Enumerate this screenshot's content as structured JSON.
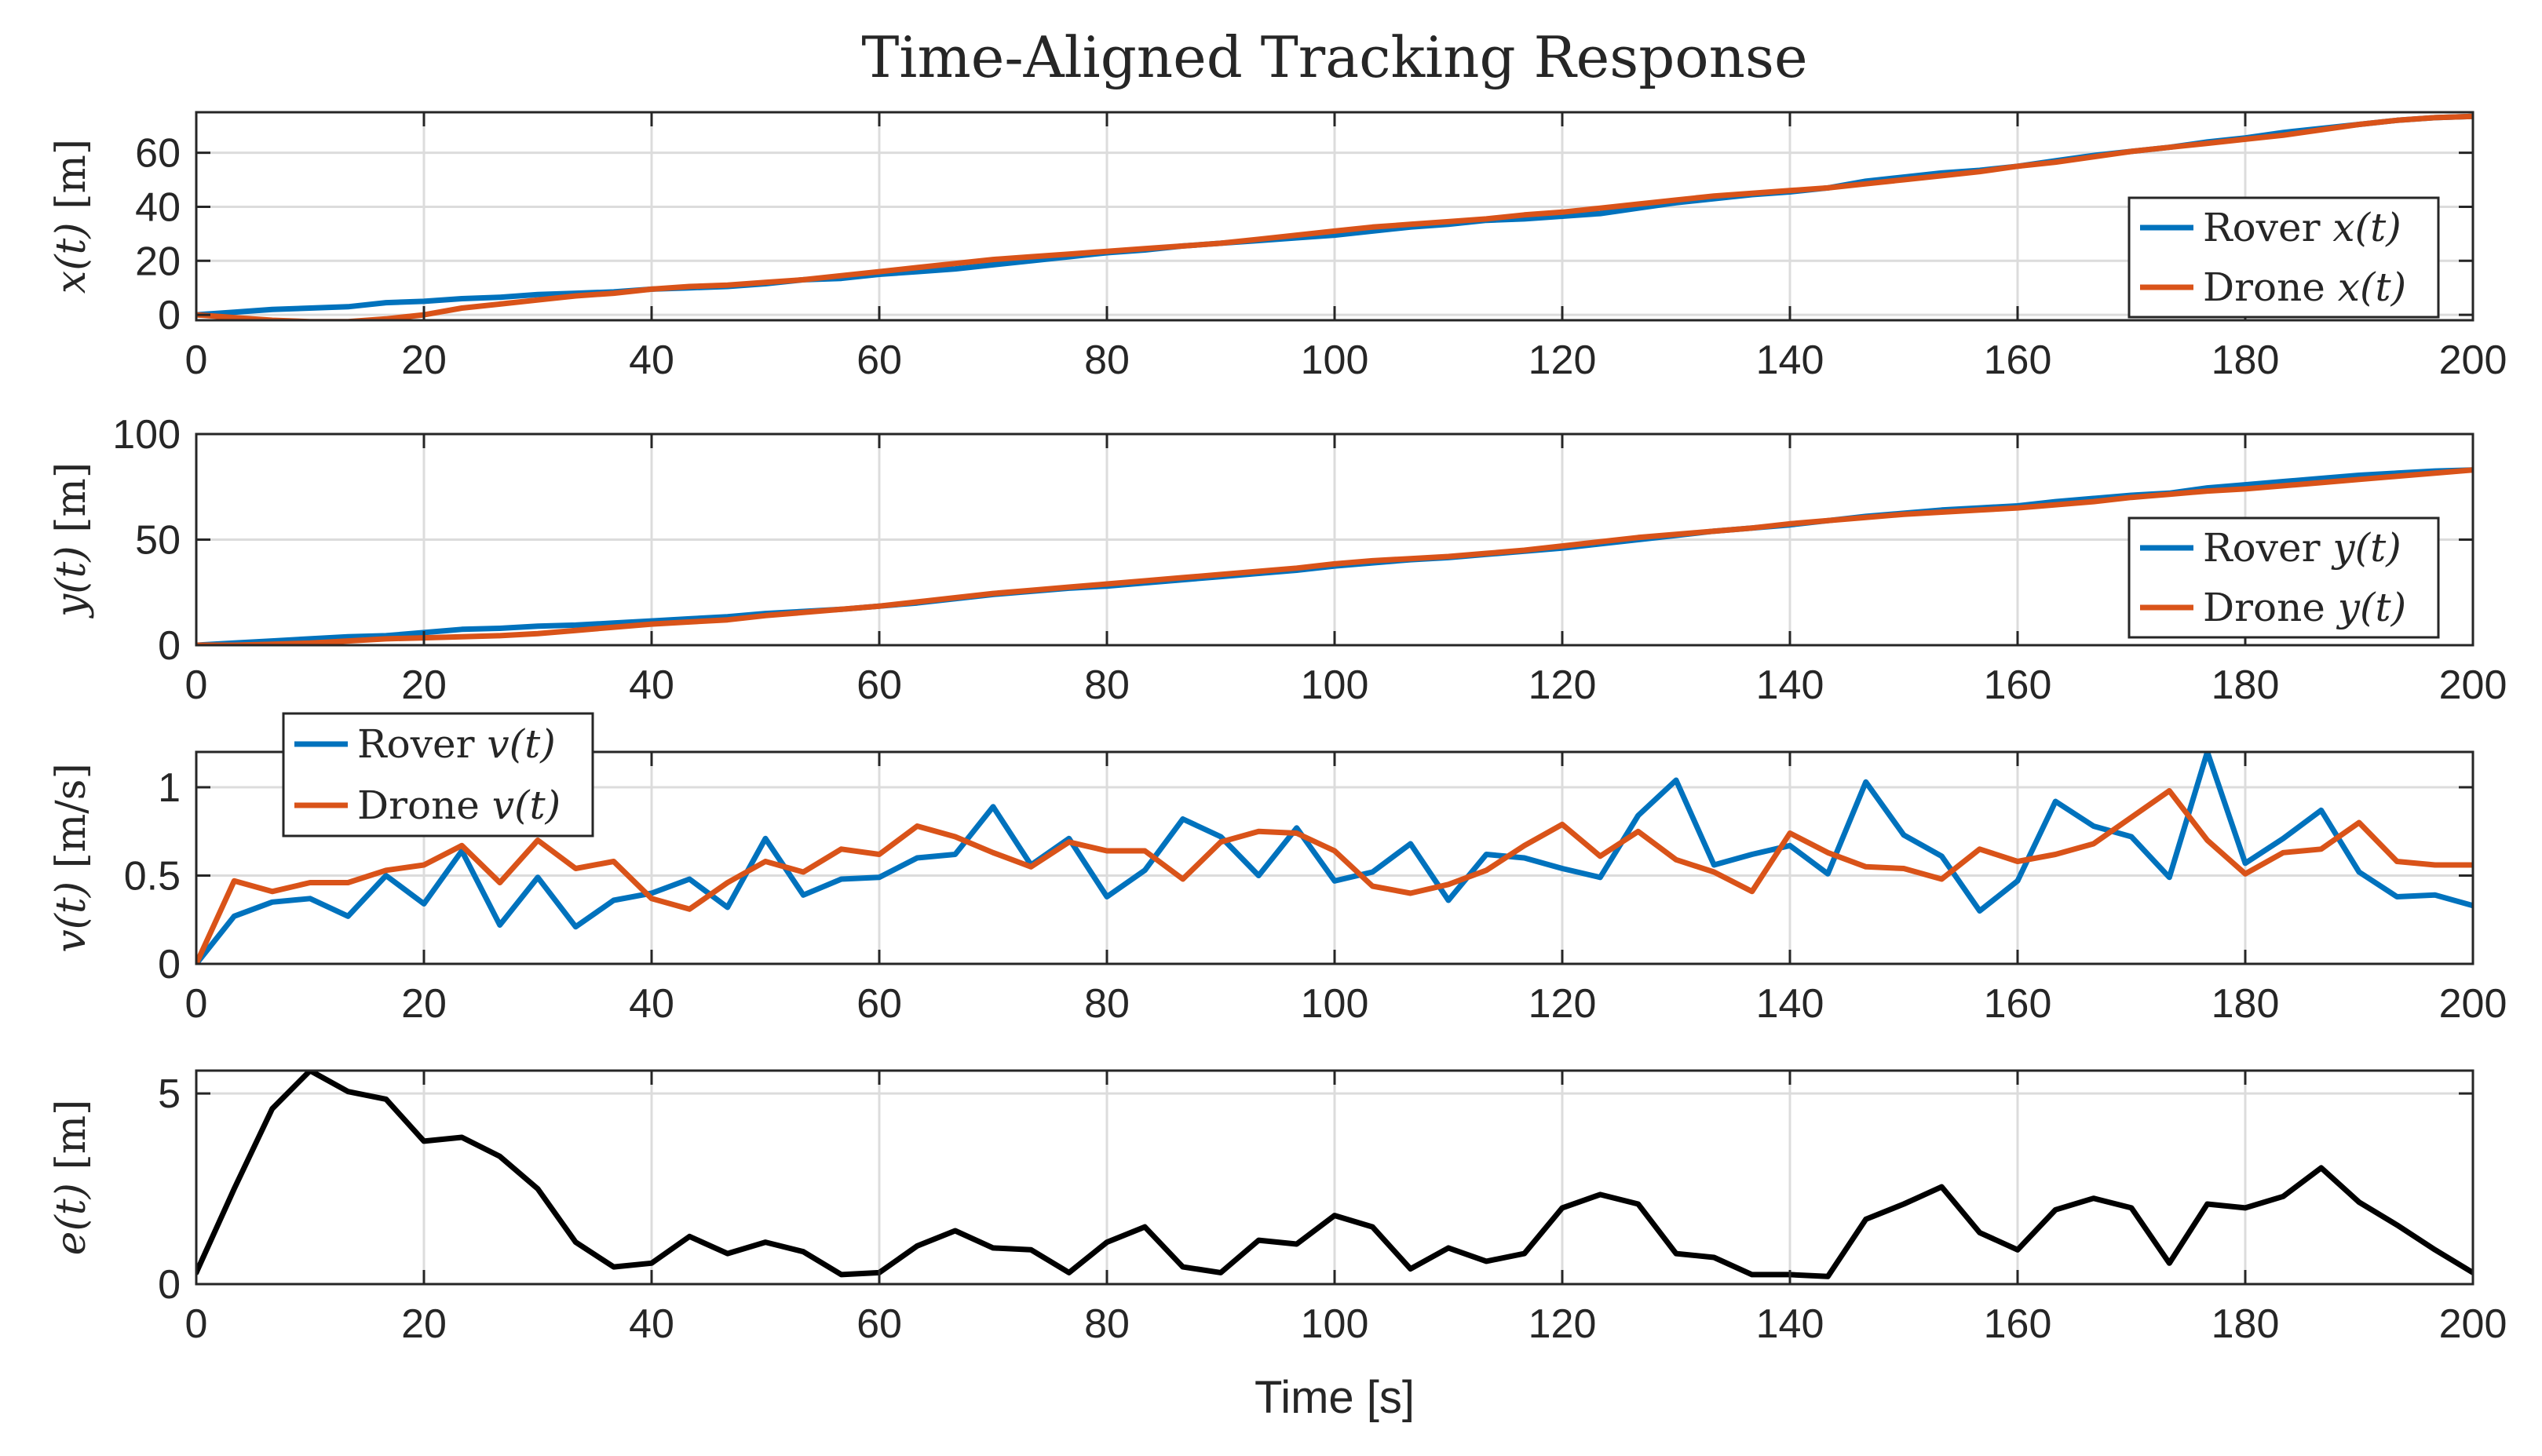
{
  "chart_data": {
    "type": "line",
    "title": "Time-Aligned Tracking Response",
    "xlabel": "Time [s]",
    "x": [
      0,
      3.33,
      6.67,
      10,
      13.33,
      16.67,
      20,
      23.33,
      26.67,
      30,
      33.33,
      36.67,
      40,
      43.33,
      46.67,
      50,
      53.33,
      56.67,
      60,
      63.33,
      66.67,
      70,
      73.33,
      76.67,
      80,
      83.33,
      86.67,
      90,
      93.33,
      96.67,
      100,
      103.33,
      106.67,
      110,
      113.33,
      116.67,
      120,
      123.33,
      126.67,
      130,
      133.33,
      136.67,
      140,
      143.33,
      146.67,
      150,
      153.33,
      156.67,
      160,
      163.33,
      166.67,
      170,
      173.33,
      176.67,
      180,
      183.33,
      186.67,
      190,
      193.33,
      196.67,
      200
    ],
    "subplots": [
      {
        "ylabel": "x(t) [m]",
        "xlim": [
          0,
          200
        ],
        "ylim": [
          -2,
          75
        ],
        "yticks": [
          0,
          20,
          40,
          60
        ],
        "xticks": [
          0,
          20,
          40,
          60,
          80,
          100,
          120,
          140,
          160,
          180,
          200
        ],
        "legend_position": "bottom-right",
        "series": [
          {
            "name": "Rover x(t)",
            "legend_name": "Rover",
            "legend_var": "x(t)",
            "color": "#0072BD",
            "values": [
              0,
              1,
              2,
              2.5,
              3,
              4.5,
              5,
              6,
              6.5,
              7.5,
              8,
              8.5,
              9.5,
              10,
              10.5,
              11.5,
              13,
              13.5,
              15,
              16,
              17,
              18.5,
              20,
              21.5,
              23,
              24,
              25.5,
              26.5,
              27.5,
              28.5,
              29.5,
              31,
              32.5,
              33.5,
              35,
              35.5,
              36.5,
              37.5,
              39.5,
              41.5,
              43,
              44.5,
              45.5,
              47,
              49.5,
              51,
              52.5,
              53.5,
              55,
              57,
              59,
              60.5,
              62,
              64,
              65.5,
              67.5,
              69,
              70.5,
              72,
              73,
              73.5
            ]
          },
          {
            "name": "Drone x(t)",
            "legend_name": "Drone",
            "legend_var": "x(t)",
            "color": "#D95319",
            "values": [
              0,
              -1,
              -2,
              -2.5,
              -2.5,
              -1.5,
              0,
              2.5,
              4,
              5.5,
              7,
              8,
              9.5,
              10.5,
              11,
              12,
              13,
              14.5,
              16,
              17.5,
              19,
              20.5,
              21.5,
              22.5,
              23.5,
              24.5,
              25.5,
              26.5,
              28,
              29.5,
              31,
              32.5,
              33.5,
              34.5,
              35.5,
              37,
              38,
              39.5,
              41,
              42.5,
              44,
              45,
              46,
              47,
              48.5,
              50,
              51.5,
              53,
              55,
              56.5,
              58.5,
              60.5,
              62,
              63.5,
              65,
              66.5,
              68.5,
              70.5,
              72,
              73,
              73.5
            ]
          }
        ]
      },
      {
        "ylabel": "y(t) [m]",
        "xlim": [
          0,
          200
        ],
        "ylim": [
          0,
          100
        ],
        "yticks": [
          0,
          50,
          100
        ],
        "xticks": [
          0,
          20,
          40,
          60,
          80,
          100,
          120,
          140,
          160,
          180,
          200
        ],
        "legend_position": "bottom-right",
        "series": [
          {
            "name": "Rover y(t)",
            "legend_name": "Rover",
            "legend_var": "y(t)",
            "color": "#0072BD",
            "values": [
              0,
              1,
              2,
              3,
              4,
              4.5,
              6,
              7.5,
              8,
              9,
              9.5,
              10.5,
              11.5,
              12.5,
              13.5,
              15,
              16,
              17,
              18.5,
              20,
              22,
              24,
              25.5,
              27,
              28,
              29.5,
              31,
              32.5,
              34,
              35.5,
              37.5,
              39,
              40.5,
              41.5,
              43,
              44.5,
              46,
              48,
              50,
              52,
              54,
              55.5,
              57,
              59,
              61,
              62.5,
              64,
              65,
              66,
              68,
              69.5,
              71,
              72,
              74.5,
              76,
              77.5,
              79,
              80.5,
              81.5,
              82.5,
              83
            ]
          },
          {
            "name": "Drone y(t)",
            "legend_name": "Drone",
            "legend_var": "y(t)",
            "color": "#D95319",
            "values": [
              0,
              0,
              0.5,
              1,
              2,
              3,
              3.5,
              4,
              4.5,
              5.5,
              7,
              8.5,
              10,
              11,
              12,
              14,
              15.5,
              17,
              18.5,
              20.5,
              22.5,
              24.5,
              26,
              27.5,
              29,
              30.5,
              32,
              33.5,
              35,
              36.5,
              38.5,
              40,
              41,
              42,
              43.5,
              45,
              47,
              49,
              51,
              52.5,
              54,
              55.5,
              57.5,
              59,
              60.5,
              62,
              63,
              64,
              65,
              66.5,
              68,
              70,
              71.5,
              73,
              74,
              75.5,
              77,
              78.5,
              80,
              81.5,
              83
            ]
          }
        ]
      },
      {
        "ylabel": "v(t) [m/s]",
        "xlim": [
          0,
          200
        ],
        "ylim": [
          0,
          1.2
        ],
        "yticks": [
          0,
          0.5,
          1
        ],
        "xticks": [
          0,
          20,
          40,
          60,
          80,
          100,
          120,
          140,
          160,
          180,
          200
        ],
        "legend_position": "top-left (outside)",
        "series": [
          {
            "name": "Rover v(t)",
            "legend_name": "Rover",
            "legend_var": "v(t)",
            "color": "#0072BD",
            "values": [
              0,
              0.27,
              0.35,
              0.37,
              0.27,
              0.5,
              0.34,
              0.64,
              0.22,
              0.49,
              0.21,
              0.36,
              0.4,
              0.48,
              0.32,
              0.71,
              0.39,
              0.48,
              0.49,
              0.6,
              0.62,
              0.89,
              0.56,
              0.71,
              0.38,
              0.53,
              0.82,
              0.72,
              0.5,
              0.77,
              0.47,
              0.52,
              0.68,
              0.36,
              0.62,
              0.6,
              0.54,
              0.49,
              0.84,
              1.04,
              0.56,
              0.62,
              0.67,
              0.51,
              1.03,
              0.73,
              0.61,
              0.3,
              0.47,
              0.92,
              0.78,
              0.72,
              0.49,
              1.2,
              0.57,
              0.71,
              0.87,
              0.52,
              0.38,
              0.39,
              0.33
            ]
          },
          {
            "name": "Drone v(t)",
            "legend_name": "Drone",
            "legend_var": "v(t)",
            "color": "#D95319",
            "values": [
              0,
              0.47,
              0.41,
              0.46,
              0.46,
              0.53,
              0.56,
              0.67,
              0.46,
              0.7,
              0.54,
              0.58,
              0.37,
              0.31,
              0.46,
              0.58,
              0.52,
              0.65,
              0.62,
              0.78,
              0.72,
              0.63,
              0.55,
              0.69,
              0.64,
              0.64,
              0.48,
              0.69,
              0.75,
              0.74,
              0.64,
              0.44,
              0.4,
              0.45,
              0.53,
              0.67,
              0.79,
              0.61,
              0.75,
              0.59,
              0.52,
              0.41,
              0.74,
              0.63,
              0.55,
              0.54,
              0.48,
              0.65,
              0.58,
              0.62,
              0.68,
              0.83,
              0.98,
              0.7,
              0.51,
              0.63,
              0.65,
              0.8,
              0.58,
              0.56,
              0.56
            ]
          }
        ]
      },
      {
        "ylabel": "e(t) [m]",
        "xlim": [
          0,
          200
        ],
        "ylim": [
          0,
          5.6
        ],
        "yticks": [
          0,
          5
        ],
        "xticks": [
          0,
          20,
          40,
          60,
          80,
          100,
          120,
          140,
          160,
          180,
          200
        ],
        "legend_position": "none",
        "series": [
          {
            "name": "e(t)",
            "color": "#000000",
            "values": [
              0.3,
              2.5,
              4.6,
              5.6,
              5.05,
              4.85,
              3.75,
              3.85,
              3.35,
              2.5,
              1.1,
              0.45,
              0.55,
              1.25,
              0.8,
              1.1,
              0.85,
              0.25,
              0.3,
              1.0,
              1.4,
              0.95,
              0.9,
              0.3,
              1.1,
              1.5,
              0.45,
              0.3,
              1.15,
              1.05,
              1.8,
              1.5,
              0.4,
              0.95,
              0.6,
              0.8,
              2.0,
              2.35,
              2.1,
              0.8,
              0.7,
              0.25,
              0.25,
              0.2,
              1.7,
              2.1,
              2.55,
              1.35,
              0.9,
              1.95,
              2.25,
              2.0,
              0.55,
              2.1,
              2.0,
              2.3,
              3.05,
              2.15,
              1.55,
              0.9,
              0.3
            ]
          }
        ]
      }
    ]
  },
  "colors": {
    "rover": "#0072BD",
    "drone": "#D95319",
    "error": "#000000",
    "grid": "#DCDCDC",
    "axis": "#262626"
  }
}
